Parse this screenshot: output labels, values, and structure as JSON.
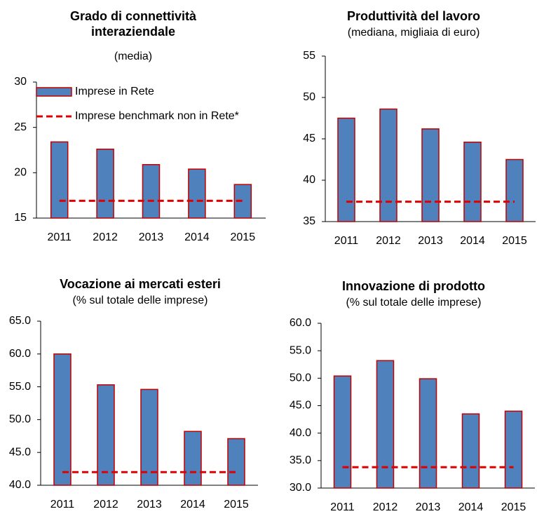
{
  "chart_data": [
    {
      "type": "bar",
      "title": "Grado di connettività interaziendale",
      "subtitle": "(media)",
      "categories": [
        "2011",
        "2012",
        "2013",
        "2014",
        "2015"
      ],
      "series": [
        {
          "name": "Imprese in Rete",
          "type": "bar",
          "color": "#4f81bd",
          "values": [
            23.4,
            22.6,
            20.9,
            20.4,
            18.7
          ]
        },
        {
          "name": "Imprese benchmark non in Rete*",
          "type": "line",
          "color": "#e00000",
          "values": [
            16.9,
            16.9,
            16.9,
            16.9,
            16.9
          ]
        }
      ],
      "ylim": [
        15,
        30
      ],
      "yticks": [
        15,
        20,
        25,
        30
      ]
    },
    {
      "type": "bar",
      "title": "Produttività del lavoro",
      "subtitle": "(mediana, migliaia di euro)",
      "categories": [
        "2011",
        "2012",
        "2013",
        "2014",
        "2015"
      ],
      "series": [
        {
          "type": "bar",
          "color": "#4f81bd",
          "values": [
            47.5,
            48.6,
            46.2,
            44.6,
            42.5
          ]
        },
        {
          "type": "line",
          "color": "#e00000",
          "values": [
            37.4,
            37.4,
            37.4,
            37.4,
            37.4
          ]
        }
      ],
      "ylim": [
        35,
        55
      ],
      "yticks": [
        35,
        40,
        45,
        50,
        55
      ]
    },
    {
      "type": "bar",
      "title": "Vocazione ai mercati esteri",
      "subtitle": "(% sul totale delle imprese)",
      "categories": [
        "2011",
        "2012",
        "2013",
        "2014",
        "2015"
      ],
      "series": [
        {
          "type": "bar",
          "color": "#4f81bd",
          "values": [
            60.0,
            55.3,
            54.6,
            48.2,
            47.1
          ]
        },
        {
          "type": "line",
          "color": "#e00000",
          "values": [
            42.0,
            42.0,
            42.0,
            42.0,
            42.0
          ]
        }
      ],
      "ylim": [
        40,
        65
      ],
      "yticks": [
        {
          "value": 40,
          "label": "40.0"
        },
        {
          "value": 45,
          "label": "45.0"
        },
        {
          "value": 50,
          "label": "50.0"
        },
        {
          "value": 55,
          "label": "55.0"
        },
        {
          "value": 60,
          "label": "60.0"
        },
        {
          "value": 65,
          "label": "65.0"
        }
      ]
    },
    {
      "type": "bar",
      "title": "Innovazione di prodotto",
      "subtitle": "(% sul totale delle imprese)",
      "categories": [
        "2011",
        "2012",
        "2013",
        "2014",
        "2015"
      ],
      "series": [
        {
          "type": "bar",
          "color": "#4f81bd",
          "values": [
            50.4,
            53.2,
            49.9,
            43.5,
            44.0
          ]
        },
        {
          "type": "line",
          "color": "#e00000",
          "values": [
            33.8,
            33.8,
            33.8,
            33.8,
            33.8
          ]
        }
      ],
      "ylim": [
        30,
        60
      ],
      "yticks": [
        {
          "value": 30,
          "label": "30.0"
        },
        {
          "value": 35,
          "label": "35.0"
        },
        {
          "value": 40,
          "label": "40.0"
        },
        {
          "value": 45,
          "label": "45.0"
        },
        {
          "value": 50,
          "label": "50.0"
        },
        {
          "value": 55,
          "label": "55.0"
        },
        {
          "value": 60,
          "label": "60.0"
        }
      ]
    }
  ]
}
